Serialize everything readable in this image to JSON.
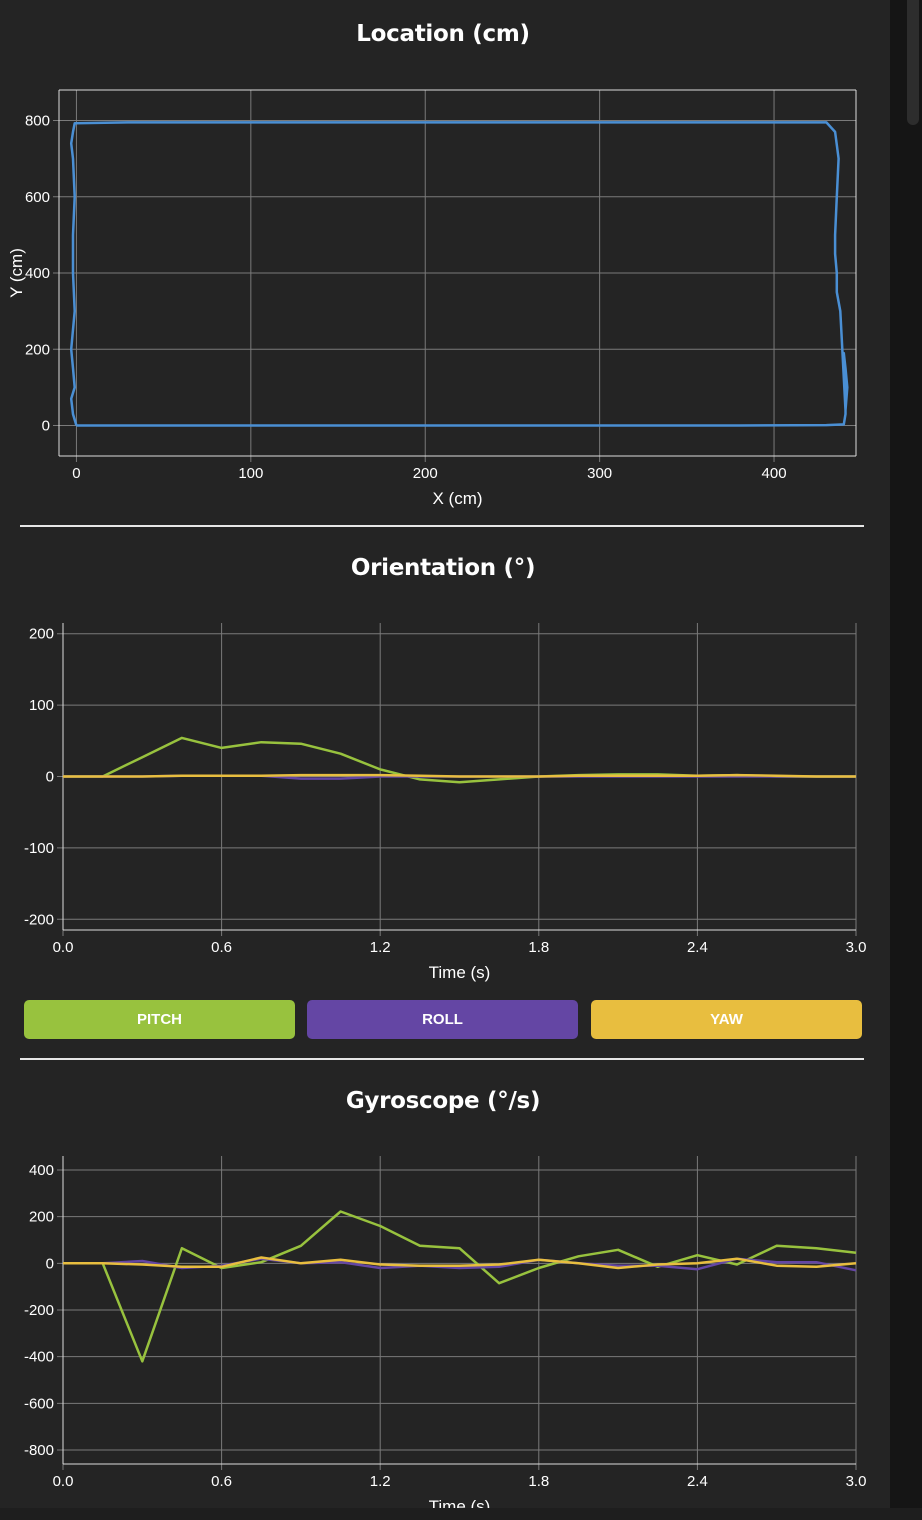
{
  "colors": {
    "location_line": "#4a8fd4",
    "pitch": "#98c23e",
    "roll": "#6446a4",
    "yaw": "#e8be3f",
    "grid": "#7a7a7a"
  },
  "location": {
    "title": "Location (cm)",
    "xlabel": "X (cm)",
    "ylabel": "Y (cm)"
  },
  "orientation": {
    "title": "Orientation (°)",
    "xlabel": "Time (s)"
  },
  "gyroscope": {
    "title": "Gyroscope (°/s)",
    "xlabel": "Time (s)"
  },
  "buttons": {
    "pitch": "PITCH",
    "roll": "ROLL",
    "yaw": "YAW"
  },
  "chart_data": [
    {
      "type": "line",
      "title": "Location (cm)",
      "xlabel": "X (cm)",
      "ylabel": "Y (cm)",
      "xlim": [
        -10,
        447
      ],
      "ylim": [
        -80,
        880
      ],
      "xticks": [
        0,
        100,
        200,
        300,
        400
      ],
      "yticks": [
        0,
        200,
        400,
        600,
        800
      ],
      "grid": true,
      "series": [
        {
          "color": "#4a8fd4",
          "x": [
            0,
            60,
            150,
            230,
            300,
            380,
            430,
            440,
            441,
            441,
            440,
            440,
            441,
            442,
            441,
            438,
            436,
            436,
            435,
            435,
            436,
            437,
            435,
            430,
            400,
            300,
            200,
            100,
            30,
            -1,
            -2,
            -3,
            -2,
            -1,
            -2,
            -2,
            -1,
            -3,
            -2,
            -1,
            -3,
            -2,
            0
          ],
          "y": [
            0,
            0,
            0,
            0,
            0,
            0,
            1,
            3,
            30,
            100,
            150,
            190,
            150,
            100,
            40,
            300,
            350,
            400,
            450,
            500,
            600,
            700,
            770,
            795,
            795,
            795,
            795,
            795,
            795,
            793,
            770,
            740,
            700,
            600,
            500,
            400,
            300,
            200,
            150,
            100,
            70,
            30,
            0
          ]
        }
      ]
    },
    {
      "type": "line",
      "title": "Orientation (°)",
      "xlabel": "Time (s)",
      "xlim": [
        0,
        3
      ],
      "ylim": [
        -215,
        215
      ],
      "xticks": [
        0.0,
        0.6,
        1.2,
        1.8,
        2.4,
        3.0
      ],
      "yticks": [
        200,
        100,
        0,
        -100,
        -200
      ],
      "grid": true,
      "x": [
        0.0,
        0.15,
        0.3,
        0.45,
        0.6,
        0.75,
        0.9,
        1.05,
        1.2,
        1.35,
        1.5,
        1.65,
        1.8,
        1.95,
        2.1,
        2.25,
        2.4,
        2.55,
        2.7,
        2.85,
        3.0
      ],
      "series": [
        {
          "name": "PITCH",
          "color": "#98c23e",
          "values": [
            0,
            0,
            27,
            54,
            40,
            48,
            46,
            32,
            10,
            -4,
            -8,
            -4,
            0,
            2,
            3,
            3,
            1,
            2,
            0,
            0,
            0
          ]
        },
        {
          "name": "ROLL",
          "color": "#6446a4",
          "values": [
            0,
            0,
            0,
            1,
            1,
            1,
            -3,
            -3,
            0,
            0,
            0,
            0,
            0,
            0,
            0,
            0,
            0,
            0,
            0,
            0,
            0
          ]
        },
        {
          "name": "YAW",
          "color": "#e8be3f",
          "values": [
            0,
            0,
            0,
            1,
            1,
            1,
            2,
            2,
            2,
            1,
            0,
            0,
            0,
            1,
            1,
            1,
            1,
            2,
            1,
            0,
            0
          ]
        }
      ]
    },
    {
      "type": "line",
      "title": "Gyroscope (°/s)",
      "xlabel": "Time (s)",
      "xlim": [
        0,
        3
      ],
      "ylim": [
        -860,
        460
      ],
      "xticks": [
        0.0,
        0.6,
        1.2,
        1.8,
        2.4,
        3.0
      ],
      "yticks": [
        400,
        200,
        0,
        -200,
        -400,
        -600,
        -800
      ],
      "grid": true,
      "x": [
        0.0,
        0.15,
        0.3,
        0.45,
        0.6,
        0.75,
        0.9,
        1.05,
        1.2,
        1.35,
        1.5,
        1.65,
        1.8,
        1.95,
        2.1,
        2.25,
        2.4,
        2.55,
        2.7,
        2.85,
        3.0
      ],
      "series": [
        {
          "name": "PITCH",
          "color": "#98c23e",
          "values": [
            0,
            0,
            -420,
            65,
            -20,
            5,
            75,
            222,
            160,
            75,
            65,
            -85,
            -20,
            30,
            58,
            -15,
            35,
            -5,
            75,
            65,
            45
          ]
        },
        {
          "name": "ROLL",
          "color": "#6446a4",
          "values": [
            0,
            0,
            10,
            -20,
            -10,
            20,
            0,
            5,
            -20,
            -10,
            -20,
            -15,
            15,
            0,
            -10,
            -10,
            -25,
            20,
            5,
            5,
            -30
          ]
        },
        {
          "name": "YAW",
          "color": "#e8be3f",
          "values": [
            0,
            0,
            -5,
            -15,
            -15,
            25,
            0,
            15,
            -5,
            -10,
            -10,
            -5,
            15,
            0,
            -20,
            -5,
            0,
            20,
            -10,
            -15,
            0
          ]
        }
      ]
    }
  ]
}
